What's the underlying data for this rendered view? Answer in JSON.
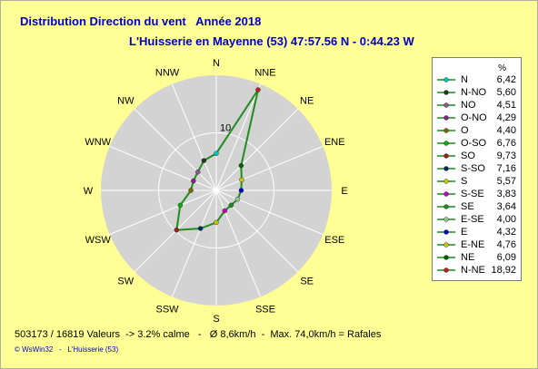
{
  "title": "Distribution Direction du vent   Année 2018",
  "subtitle": "L'Huisserie en Mayenne (53) 47:57.56 N - 0:44.23 W",
  "footer": "503173 / 16819 Valeurs  -> 3.2% calme   -   Ø 8,6km/h  -  Max. 74,0km/h = Rafales",
  "credit": "© WsWin32   -   L'Huisserie (53)",
  "legend": {
    "header": "%",
    "entries": [
      {
        "name": "N",
        "value": "6,42",
        "color": "#00c8c8"
      },
      {
        "name": "N-NO",
        "value": "5,60",
        "color": "#1e3c1e"
      },
      {
        "name": "NO",
        "value": "4,51",
        "color": "#8c5a8c"
      },
      {
        "name": "O-NO",
        "value": "4,29",
        "color": "#8c1e8c"
      },
      {
        "name": "O",
        "value": "4,40",
        "color": "#6e6e00"
      },
      {
        "name": "O-SO",
        "value": "6,76",
        "color": "#00b400"
      },
      {
        "name": "SO",
        "value": "9,73",
        "color": "#a01e1e"
      },
      {
        "name": "S-SO",
        "value": "7,16",
        "color": "#002864"
      },
      {
        "name": "S",
        "value": "5,57",
        "color": "#c8c800"
      },
      {
        "name": "S-SE",
        "value": "3,83",
        "color": "#c800c8"
      },
      {
        "name": "SE",
        "value": "3,64",
        "color": "#1e8c1e"
      },
      {
        "name": "E-SE",
        "value": "4,00",
        "color": "#96c896"
      },
      {
        "name": "E",
        "value": "4,32",
        "color": "#0000c8"
      },
      {
        "name": "E-NE",
        "value": "4,76",
        "color": "#c8c800"
      },
      {
        "name": "NE",
        "value": "6,09",
        "color": "#006400"
      },
      {
        "name": "N-NE",
        "value": "18,92",
        "color": "#c81e1e"
      }
    ]
  },
  "chart_data": {
    "type": "radar",
    "directions": [
      "N",
      "NNE",
      "NE",
      "ENE",
      "E",
      "ESE",
      "SE",
      "SSE",
      "S",
      "SSW",
      "SW",
      "WSW",
      "W",
      "WNW",
      "NW",
      "NNW"
    ],
    "values": [
      6.42,
      18.92,
      6.09,
      4.76,
      4.32,
      4.0,
      3.64,
      3.83,
      5.57,
      7.16,
      9.73,
      6.76,
      4.4,
      4.29,
      4.51,
      5.6
    ],
    "unit": "%",
    "radial_max": 20,
    "radial_ticks": [
      10
    ],
    "calm_pct": 3.2,
    "line_color": "#1e8c1e",
    "grid_fill": "#d3d3d3",
    "marker_colors": [
      "#00c8c8",
      "#c81e1e",
      "#006400",
      "#c8c800",
      "#0000c8",
      "#96c896",
      "#1e8c1e",
      "#c800c8",
      "#c8c800",
      "#002864",
      "#a01e1e",
      "#00b400",
      "#6e6e00",
      "#8c1e8c",
      "#8c5a8c",
      "#1e3c1e"
    ]
  }
}
